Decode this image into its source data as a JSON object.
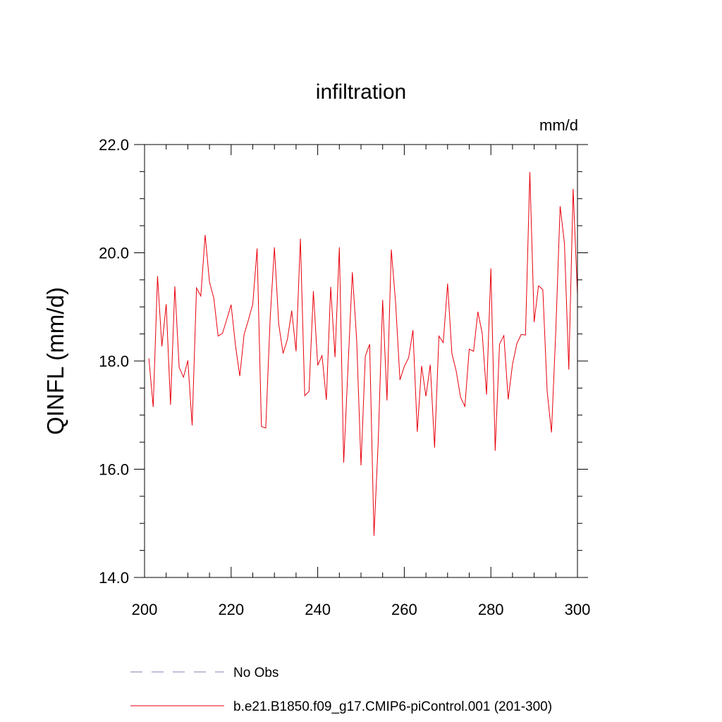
{
  "chart_data": {
    "type": "line",
    "title": "infiltration",
    "units": "mm/d",
    "xlabel": "",
    "ylabel": "QINFL  (mm/d)",
    "xlim": [
      200,
      300
    ],
    "ylim": [
      14.0,
      22.0
    ],
    "x_ticks": [
      200,
      220,
      240,
      260,
      280,
      300
    ],
    "x_tick_labels": [
      "200",
      "220",
      "240",
      "260",
      "280",
      "300"
    ],
    "y_ticks": [
      14.0,
      16.0,
      18.0,
      20.0,
      22.0
    ],
    "y_tick_labels": [
      "14.0",
      "16.0",
      "18.0",
      "20.0",
      "22.0"
    ],
    "x_minor_step": 5,
    "y_minor_step": 0.5,
    "grid": false,
    "series": [
      {
        "name": "b.e21.B1850.f09_g17.CMIP6-piControl.001 (201-300)",
        "color": "#e8000b",
        "style": "solid",
        "x": [
          201,
          202,
          203,
          204,
          205,
          206,
          207,
          208,
          209,
          210,
          211,
          212,
          213,
          214,
          215,
          216,
          217,
          218,
          219,
          220,
          221,
          222,
          223,
          224,
          225,
          226,
          227,
          228,
          229,
          230,
          231,
          232,
          233,
          234,
          235,
          236,
          237,
          238,
          239,
          240,
          241,
          242,
          243,
          244,
          245,
          246,
          247,
          248,
          249,
          250,
          251,
          252,
          253,
          254,
          255,
          256,
          257,
          258,
          259,
          260,
          261,
          262,
          263,
          264,
          265,
          266,
          267,
          268,
          269,
          270,
          271,
          272,
          273,
          274,
          275,
          276,
          277,
          278,
          279,
          280,
          281,
          282,
          283,
          284,
          285,
          286,
          287,
          288,
          289,
          290,
          291,
          292,
          293,
          294,
          295,
          296,
          297,
          298,
          299,
          300
        ],
        "values": [
          18.05,
          17.15,
          19.57,
          18.27,
          19.05,
          17.19,
          19.38,
          17.88,
          17.7,
          18.01,
          16.81,
          19.35,
          19.2,
          20.33,
          19.46,
          19.16,
          18.46,
          18.51,
          18.77,
          19.04,
          18.29,
          17.72,
          18.49,
          18.76,
          19.05,
          20.08,
          16.79,
          16.76,
          18.76,
          20.1,
          18.68,
          18.14,
          18.4,
          18.93,
          18.18,
          20.26,
          17.36,
          17.44,
          19.29,
          17.92,
          18.1,
          17.28,
          19.37,
          18.07,
          20.1,
          16.12,
          17.88,
          19.64,
          18.39,
          16.07,
          18.09,
          18.31,
          14.77,
          16.55,
          19.13,
          17.27,
          20.06,
          19.07,
          17.65,
          17.9,
          18.06,
          18.57,
          16.69,
          17.91,
          17.35,
          17.93,
          16.4,
          18.46,
          18.34,
          19.43,
          18.14,
          17.81,
          17.33,
          17.16,
          18.22,
          18.18,
          18.91,
          18.51,
          17.38,
          19.71,
          16.34,
          18.31,
          18.47,
          17.29,
          17.94,
          18.32,
          18.49,
          18.48,
          21.49,
          18.72,
          19.39,
          19.32,
          17.44,
          16.68,
          18.56,
          20.86,
          20.17,
          17.84,
          21.18,
          19.23
        ]
      }
    ],
    "legend": [
      {
        "label": "No Obs",
        "color": "#7f7fb5",
        "style": "dashed"
      },
      {
        "label": "b.e21.B1850.f09_g17.CMIP6-piControl.001 (201-300)",
        "color": "#e8000b",
        "style": "solid"
      }
    ],
    "legend_position": "bottom"
  }
}
